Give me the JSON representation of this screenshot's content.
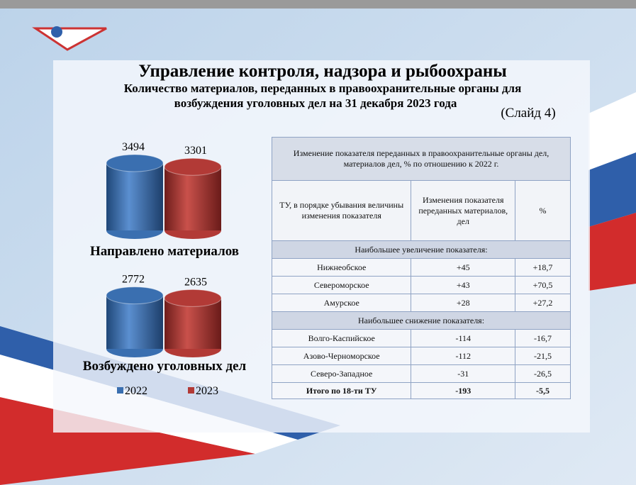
{
  "header": {
    "title": "Управление контроля, надзора и рыбоохраны",
    "subtitle": [
      "Количество материалов, переданных в правоохранительные органы для",
      "возбуждения уголовных дел на 31 декабря 2023 года"
    ],
    "slide_label": "(Слайд 4)"
  },
  "chart_data": [
    {
      "type": "bar",
      "title": "Направлено материалов",
      "series": [
        {
          "color": "#3a6fb0",
          "values": [
            3494
          ]
        },
        {
          "color": "#b23a36",
          "values": [
            3301
          ]
        }
      ]
    },
    {
      "type": "bar",
      "title": "Возбуждено уголовных дел",
      "series": [
        {
          "name": "2022",
          "color": "#3a6fb0",
          "values": [
            2772
          ]
        },
        {
          "name": "2023",
          "color": "#b23a36",
          "values": [
            2635
          ]
        }
      ]
    }
  ],
  "table": {
    "caption": "Изменение показателя переданных в правоохранительные органы дел, материалов дел, % по отношению к 2022  г.",
    "header": [
      "ТУ, в порядке убывания величины изменения показателя",
      "Изменения показателя переданных материалов, дел",
      "%"
    ],
    "sections": [
      {
        "heading": "Наибольшее увеличение показателя:",
        "rows": [
          [
            "Нижнеобское",
            "+45",
            "+18,7"
          ],
          [
            "Североморское",
            "+43",
            "+70,5"
          ],
          [
            "Амурское",
            "+28",
            "+27,2"
          ]
        ]
      },
      {
        "heading": "Наибольшее снижение показателя:",
        "rows": [
          [
            "Волго-Каспийское",
            "-114",
            "-16,7"
          ],
          [
            "Азово-Черноморское",
            "-112",
            "-21,5"
          ],
          [
            "Северо-Западное",
            "-31",
            "-26,5"
          ]
        ]
      }
    ],
    "total": [
      "Итого по 18-ти ТУ",
      "-193",
      "-5,5"
    ]
  }
}
